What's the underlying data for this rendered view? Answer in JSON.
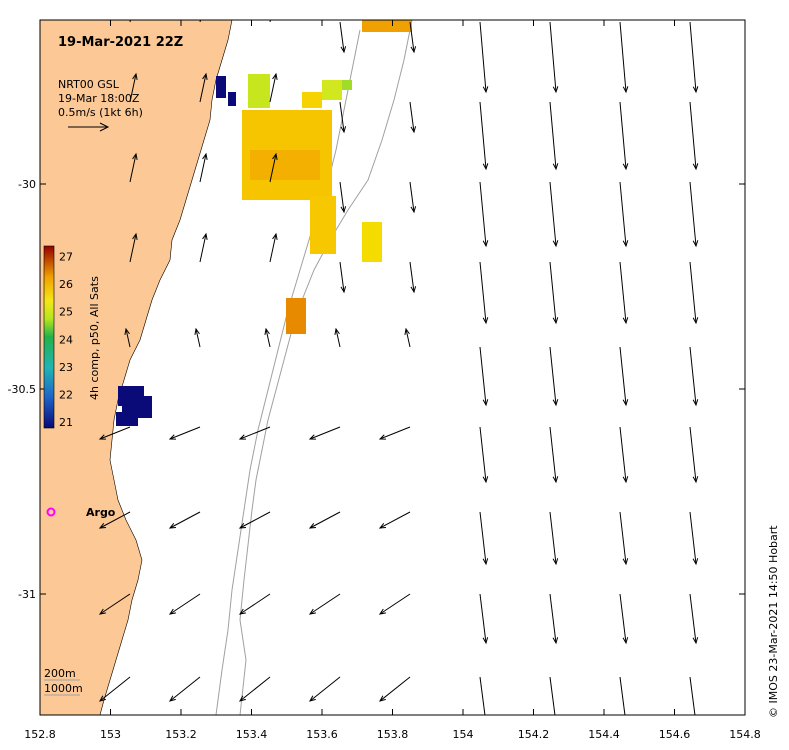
{
  "map": {
    "title": "19-Mar-2021 22Z",
    "info_lines": [
      "NRT00 GSL",
      "19-Mar 18:00Z",
      "0.5m/s (1kt 6h)"
    ],
    "colorbar_label": "4h comp, p50, All Sats",
    "colorbar_ticks": [
      "21",
      "22",
      "23",
      "24",
      "25",
      "26",
      "27"
    ],
    "colorbar_range": [
      21,
      27
    ],
    "x_ticks": [
      "152.8",
      "153",
      "153.2",
      "153.4",
      "153.6",
      "153.8",
      "154",
      "154.2",
      "154.4",
      "154.6",
      "154.8"
    ],
    "y_ticks": [
      "-30",
      "-30.5",
      "-31"
    ],
    "depth_labels": [
      "200m",
      "1000m"
    ],
    "argo_label": "Argo",
    "credit": "© IMOS 23-Mar-2021 14:50 Hobart",
    "colors": {
      "land": "#fbc896",
      "deep_sst": "#0a0a78",
      "contour": "#a0a0a0",
      "argo": "#ff00ff"
    }
  }
}
